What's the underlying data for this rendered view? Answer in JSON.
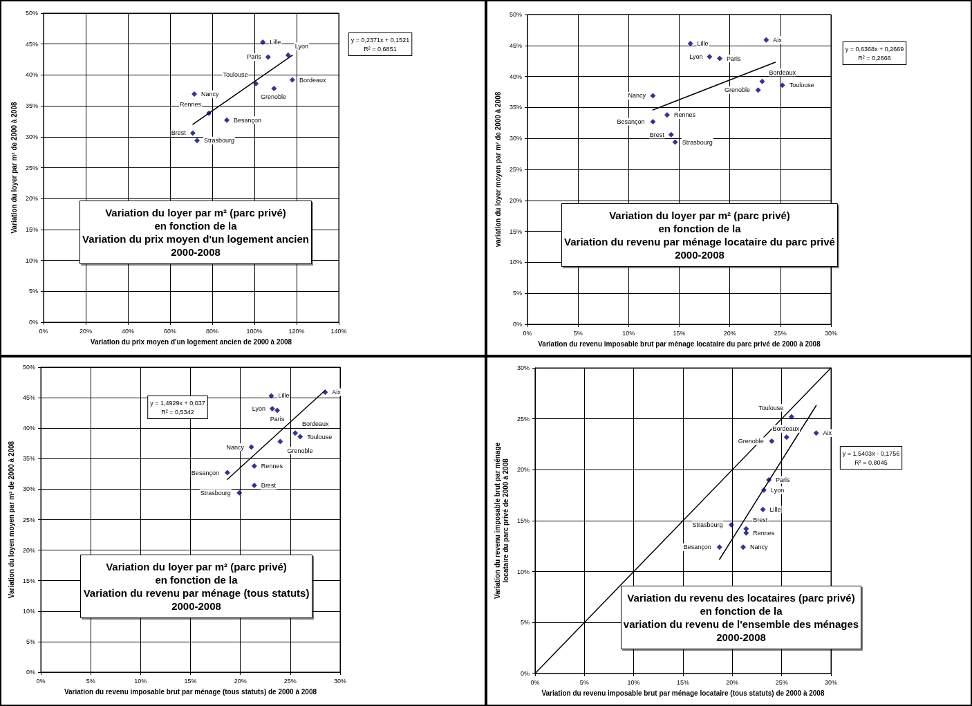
{
  "chart_data": [
    {
      "type": "scatter",
      "title": "Variation du loyer par m² (parc privé)\nen fonction de la\nVariation du prix moyen d'un logement ancien\n2000-2008",
      "xlabel": "Variation du prix moyen d'un logement ancien de 2000 à 2008",
      "ylabel": "Variation du loyer par m² de 2000 à 2008",
      "marker": "diamond",
      "grid": true,
      "xlim": [
        0,
        140
      ],
      "xticks": [
        {
          "value": 0,
          "label": "0%"
        },
        {
          "value": 20,
          "label": "20%"
        },
        {
          "value": 40,
          "label": "40%"
        },
        {
          "value": 60,
          "label": "60%"
        },
        {
          "value": 80,
          "label": "80%"
        },
        {
          "value": 100,
          "label": "100%"
        },
        {
          "value": 120,
          "label": "120%"
        },
        {
          "value": 140,
          "label": "140%"
        }
      ],
      "ylim": [
        0,
        50
      ],
      "yticks": [
        {
          "value": 0,
          "label": "0%"
        },
        {
          "value": 5,
          "label": "5%"
        },
        {
          "value": 10,
          "label": "10%"
        },
        {
          "value": 15,
          "label": "15%"
        },
        {
          "value": 20,
          "label": "20%"
        },
        {
          "value": 25,
          "label": "25%"
        },
        {
          "value": 30,
          "label": "30%"
        },
        {
          "value": 35,
          "label": "35%"
        },
        {
          "value": 40,
          "label": "40%"
        },
        {
          "value": 45,
          "label": "45%"
        },
        {
          "value": 50,
          "label": "50%"
        }
      ],
      "series": [
        {
          "color": "#000080",
          "x": [
            104,
            116,
            106.5,
            100.7,
            118,
            109.3,
            71.5,
            78.4,
            86.9,
            70.8,
            72.8
          ],
          "values": [
            45.3,
            43.2,
            42.9,
            38.6,
            39.2,
            37.8,
            36.9,
            33.8,
            32.7,
            30.6,
            29.4
          ]
        },
        {
          "type": "line",
          "marker": "none",
          "color": "#000000",
          "x": [
            70.8,
            118
          ],
          "values": [
            32,
            43.2
          ]
        }
      ],
      "annotations": [
        {
          "text": "Lille",
          "x": 104,
          "y": 45.3
        },
        {
          "text": "Lyon",
          "x": 116,
          "y": 43.2
        },
        {
          "text": "Paris",
          "x": 106.5,
          "y": 42.9
        },
        {
          "text": "Toulouse",
          "x": 100.7,
          "y": 38.6
        },
        {
          "text": "Bordeaux",
          "x": 118,
          "y": 39.2
        },
        {
          "text": "Grenoble",
          "x": 109.3,
          "y": 37.8
        },
        {
          "text": "Nancy",
          "x": 71.5,
          "y": 36.9
        },
        {
          "text": "Rennes",
          "x": 78.4,
          "y": 33.8
        },
        {
          "text": "Besançon",
          "x": 86.9,
          "y": 32.7
        },
        {
          "text": "Brest",
          "x": 70.8,
          "y": 30.6
        },
        {
          "text": "Strasbourg",
          "x": 72.8,
          "y": 29.4
        },
        "y = 0,2371x + 0,1521\nR² = 0,6851"
      ]
    },
    {
      "type": "scatter",
      "title": "Variation du loyer par m² (parc privé)\nen fonction de la\nVariation du revenu par ménage locataire du parc privé\n2000-2008",
      "xlabel": "Variation du revenu imposable brut par ménage locataire du parc privé de 2000 à 2008",
      "ylabel": "variation du loyer moyen par m² de 2000 à 2008",
      "marker": "diamond",
      "grid": true,
      "xlim": [
        0,
        30
      ],
      "xticks": [
        {
          "value": 0,
          "label": "0%"
        },
        {
          "value": 5,
          "label": "5%"
        },
        {
          "value": 10,
          "label": "10%"
        },
        {
          "value": 15,
          "label": "15%"
        },
        {
          "value": 20,
          "label": "20%"
        },
        {
          "value": 25,
          "label": "25%"
        },
        {
          "value": 30,
          "label": "30%"
        }
      ],
      "ylim": [
        0,
        50
      ],
      "yticks": [
        {
          "value": 0,
          "label": "0%"
        },
        {
          "value": 5,
          "label": "5%"
        },
        {
          "value": 10,
          "label": "10%"
        },
        {
          "value": 15,
          "label": "15%"
        },
        {
          "value": 20,
          "label": "20%"
        },
        {
          "value": 25,
          "label": "25%"
        },
        {
          "value": 30,
          "label": "30%"
        },
        {
          "value": 35,
          "label": "35%"
        },
        {
          "value": 40,
          "label": "40%"
        },
        {
          "value": 45,
          "label": "45%"
        },
        {
          "value": 50,
          "label": "50%"
        }
      ],
      "series": [
        {
          "color": "#000080",
          "x": [
            23.6,
            16.1,
            18,
            19,
            25.2,
            23.2,
            22.8,
            12.4,
            13.8,
            12.4,
            14.2,
            14.6
          ],
          "values": [
            45.9,
            45.3,
            43.2,
            42.9,
            38.6,
            39.2,
            37.8,
            36.9,
            33.8,
            32.7,
            30.6,
            29.4
          ]
        },
        {
          "type": "line",
          "marker": "none",
          "color": "#000000",
          "x": [
            12.4,
            24.5
          ],
          "values": [
            34.6,
            42.3
          ]
        }
      ],
      "annotations": [
        {
          "text": "Aix",
          "x": 23.6,
          "y": 45.9
        },
        {
          "text": "Lille",
          "x": 16.1,
          "y": 45.3
        },
        {
          "text": "Lyon",
          "x": 18,
          "y": 43.2
        },
        {
          "text": "Paris",
          "x": 19,
          "y": 42.9
        },
        {
          "text": "Toulouse",
          "x": 25.2,
          "y": 38.6
        },
        {
          "text": "Bordeaux",
          "x": 23.2,
          "y": 39.2
        },
        {
          "text": "Grenoble",
          "x": 22.8,
          "y": 37.8
        },
        {
          "text": "Nancy",
          "x": 12.4,
          "y": 36.9
        },
        {
          "text": "Rennes",
          "x": 13.8,
          "y": 33.8
        },
        {
          "text": "Besançon",
          "x": 12.4,
          "y": 32.7
        },
        {
          "text": "Brest",
          "x": 14.2,
          "y": 30.6
        },
        {
          "text": "Strasbourg",
          "x": 14.6,
          "y": 29.4
        },
        "y = 0,6368x + 0,2669\nR² = 0,2866"
      ]
    },
    {
      "type": "scatter",
      "title": "Variation du loyer par m² (parc privé)\nen fonction de la\nVariation du revenu par ménage (tous statuts)\n2000-2008",
      "xlabel": "Variation du revenu imposable brut par ménage (tous statuts) de 2000 à 2008",
      "ylabel": "Variation du loyen moyen par m² de 2000 à 2008",
      "marker": "diamond",
      "grid": true,
      "xlim": [
        0,
        30
      ],
      "xticks": [
        {
          "value": 0,
          "label": "0%"
        },
        {
          "value": 5,
          "label": "5%"
        },
        {
          "value": 10,
          "label": "10%"
        },
        {
          "value": 15,
          "label": "15%"
        },
        {
          "value": 20,
          "label": "20%"
        },
        {
          "value": 25,
          "label": "25%"
        },
        {
          "value": 30,
          "label": "30%"
        }
      ],
      "ylim": [
        0,
        50
      ],
      "yticks": [
        {
          "value": 0,
          "label": "0%"
        },
        {
          "value": 5,
          "label": "5%"
        },
        {
          "value": 10,
          "label": "10%"
        },
        {
          "value": 15,
          "label": "15%"
        },
        {
          "value": 20,
          "label": "20%"
        },
        {
          "value": 25,
          "label": "25%"
        },
        {
          "value": 30,
          "label": "30%"
        },
        {
          "value": 35,
          "label": "35%"
        },
        {
          "value": 40,
          "label": "40%"
        },
        {
          "value": 45,
          "label": "45%"
        },
        {
          "value": 50,
          "label": "50%"
        }
      ],
      "series": [
        {
          "color": "#000080",
          "x": [
            28.5,
            23.1,
            23.2,
            23.7,
            26,
            25.5,
            24,
            21.1,
            21.4,
            18.7,
            21.4,
            19.9
          ],
          "values": [
            45.9,
            45.3,
            43.2,
            42.9,
            38.6,
            39.2,
            37.8,
            36.9,
            33.8,
            32.7,
            30.6,
            29.4
          ]
        },
        {
          "type": "line",
          "marker": "none",
          "color": "#000000",
          "x": [
            18.7,
            28.5
          ],
          "values": [
            31.6,
            46.2
          ]
        }
      ],
      "annotations": [
        {
          "text": "Aix",
          "x": 28.5,
          "y": 45.9
        },
        {
          "text": "Lille",
          "x": 23.1,
          "y": 45.3
        },
        {
          "text": "Lyon",
          "x": 23.2,
          "y": 43.2
        },
        {
          "text": "Paris",
          "x": 23.7,
          "y": 42.9
        },
        {
          "text": "Toulouse",
          "x": 26,
          "y": 38.6
        },
        {
          "text": "Bordeaux",
          "x": 25.5,
          "y": 39.2
        },
        {
          "text": "Grenoble",
          "x": 24,
          "y": 37.8
        },
        {
          "text": "Nancy",
          "x": 21.1,
          "y": 36.9
        },
        {
          "text": "Rennes",
          "x": 21.4,
          "y": 33.8
        },
        {
          "text": "Besançon",
          "x": 18.7,
          "y": 32.7
        },
        {
          "text": "Brest",
          "x": 21.4,
          "y": 30.6
        },
        {
          "text": "Strasbourg",
          "x": 19.9,
          "y": 29.4
        },
        "y = 1,4929x + 0,037\nR² = 0,5342"
      ]
    },
    {
      "type": "scatter",
      "title": "Variation du revenu des locataires (parc privé)\nen fonction de la\nvariation du revenu de l'ensemble des ménages\n2000-2008",
      "xlabel": "Variation du revenu imposable brut par ménage locataire (tous statuts) de 2000 à 2008",
      "ylabel": "Variation du revenu imposable brut par ménage\nlocataire du parc privé de 2000 à 2008",
      "marker": "diamond",
      "grid": true,
      "xlim": [
        0,
        30
      ],
      "xticks": [
        {
          "value": 0,
          "label": "0%"
        },
        {
          "value": 5,
          "label": "5%"
        },
        {
          "value": 10,
          "label": "10%"
        },
        {
          "value": 15,
          "label": "15%"
        },
        {
          "value": 20,
          "label": "20%"
        },
        {
          "value": 25,
          "label": "25%"
        },
        {
          "value": 30,
          "label": "30%"
        }
      ],
      "ylim": [
        0,
        30
      ],
      "yticks": [
        {
          "value": 0,
          "label": "0%"
        },
        {
          "value": 5,
          "label": "5%"
        },
        {
          "value": 10,
          "label": "10%"
        },
        {
          "value": 15,
          "label": "15%"
        },
        {
          "value": 20,
          "label": "20%"
        },
        {
          "value": 25,
          "label": "25%"
        },
        {
          "value": 30,
          "label": "30%"
        }
      ],
      "series": [
        {
          "color": "#000080",
          "x": [
            28.5,
            23.1,
            23.2,
            23.7,
            26,
            25.5,
            24,
            21.1,
            21.4,
            18.7,
            21.4,
            19.9
          ],
          "values": [
            23.6,
            16.1,
            18,
            19,
            25.2,
            23.2,
            22.8,
            12.4,
            13.8,
            12.4,
            14.2,
            14.6
          ]
        },
        {
          "type": "line",
          "marker": "none",
          "color": "#000000",
          "x": [
            18.7,
            28.5
          ],
          "values": [
            11.2,
            26.3
          ]
        },
        {
          "type": "line",
          "marker": "none",
          "color": "#000000",
          "x": [
            0,
            30
          ],
          "values": [
            0,
            30
          ]
        }
      ],
      "annotations": [
        {
          "text": "Aix",
          "x": 28.5,
          "y": 23.6
        },
        {
          "text": "Lille",
          "x": 23.1,
          "y": 16.1
        },
        {
          "text": "Lyon",
          "x": 23.2,
          "y": 18
        },
        {
          "text": "Paris",
          "x": 23.7,
          "y": 19
        },
        {
          "text": "Toulouse",
          "x": 26,
          "y": 25.2
        },
        {
          "text": "Bordeaux",
          "x": 25.5,
          "y": 23.2
        },
        {
          "text": "Grenoble",
          "x": 24,
          "y": 22.8
        },
        {
          "text": "Nancy",
          "x": 21.1,
          "y": 12.4
        },
        {
          "text": "Rennes",
          "x": 21.4,
          "y": 13.8
        },
        {
          "text": "Besançon",
          "x": 18.7,
          "y": 12.4
        },
        {
          "text": "Brest",
          "x": 21.4,
          "y": 14.2
        },
        {
          "text": "Strasbourg",
          "x": 19.9,
          "y": 14.6
        },
        "y = 1,5403x - 0,1756\nR² = 0,8045"
      ]
    }
  ]
}
